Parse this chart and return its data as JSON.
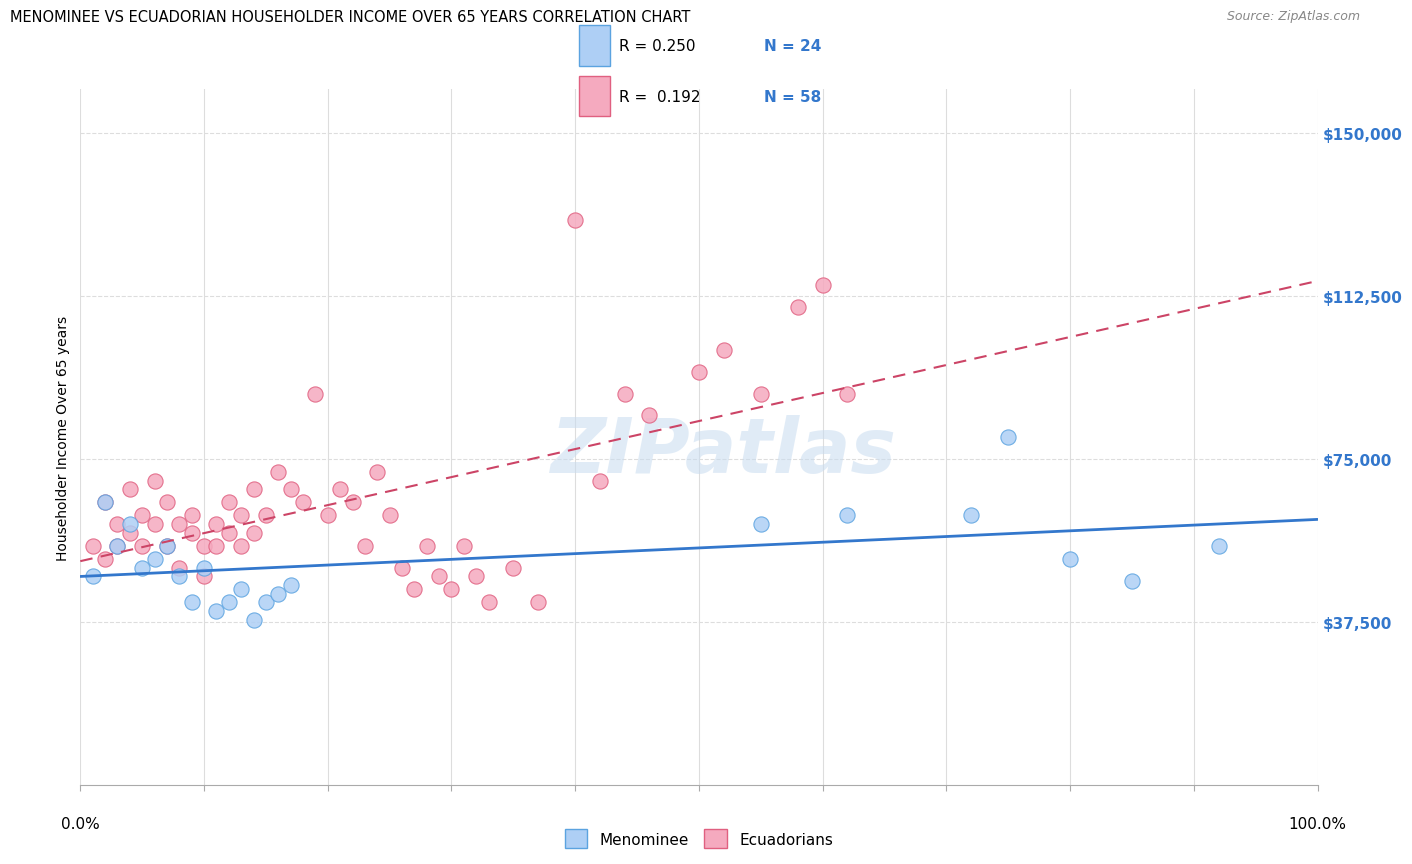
{
  "title": "MENOMINEE VS ECUADORIAN HOUSEHOLDER INCOME OVER 65 YEARS CORRELATION CHART",
  "source": "Source: ZipAtlas.com",
  "ylabel": "Householder Income Over 65 years",
  "y_ticks": [
    37500,
    75000,
    112500,
    150000
  ],
  "y_tick_labels": [
    "$37,500",
    "$75,000",
    "$112,500",
    "$150,000"
  ],
  "watermark": "ZIPatlas",
  "color_men_fill": "#AECFF5",
  "color_men_edge": "#5BA3E0",
  "color_ecu_fill": "#F5AABF",
  "color_ecu_edge": "#E06080",
  "color_blue_line": "#3377CC",
  "color_pink_line": "#CC4466",
  "color_grid": "#DDDDDD",
  "color_ytick": "#3377CC",
  "menominee_x": [
    1,
    2,
    3,
    4,
    5,
    6,
    7,
    8,
    9,
    10,
    11,
    12,
    13,
    14,
    15,
    16,
    17,
    55,
    62,
    72,
    75,
    80,
    85,
    92
  ],
  "menominee_y": [
    48000,
    65000,
    55000,
    60000,
    50000,
    52000,
    55000,
    48000,
    42000,
    50000,
    40000,
    42000,
    45000,
    38000,
    42000,
    44000,
    46000,
    60000,
    62000,
    62000,
    80000,
    52000,
    47000,
    55000
  ],
  "ecuadorian_x": [
    1,
    2,
    2,
    3,
    3,
    4,
    4,
    5,
    5,
    6,
    6,
    7,
    7,
    8,
    8,
    9,
    9,
    10,
    10,
    11,
    11,
    12,
    12,
    13,
    13,
    14,
    14,
    15,
    16,
    17,
    18,
    19,
    20,
    21,
    22,
    23,
    24,
    25,
    26,
    27,
    28,
    29,
    30,
    31,
    32,
    33,
    35,
    37,
    40,
    42,
    44,
    46,
    50,
    52,
    55,
    58,
    60,
    62
  ],
  "ecuadorian_y": [
    55000,
    52000,
    65000,
    60000,
    55000,
    68000,
    58000,
    62000,
    55000,
    70000,
    60000,
    65000,
    55000,
    60000,
    50000,
    58000,
    62000,
    55000,
    48000,
    60000,
    55000,
    65000,
    58000,
    62000,
    55000,
    68000,
    58000,
    62000,
    72000,
    68000,
    65000,
    90000,
    62000,
    68000,
    65000,
    55000,
    72000,
    62000,
    50000,
    45000,
    55000,
    48000,
    45000,
    55000,
    48000,
    42000,
    50000,
    42000,
    130000,
    70000,
    90000,
    85000,
    95000,
    100000,
    90000,
    110000,
    115000,
    90000
  ],
  "xlim": [
    0,
    100
  ],
  "ylim": [
    0,
    160000
  ]
}
